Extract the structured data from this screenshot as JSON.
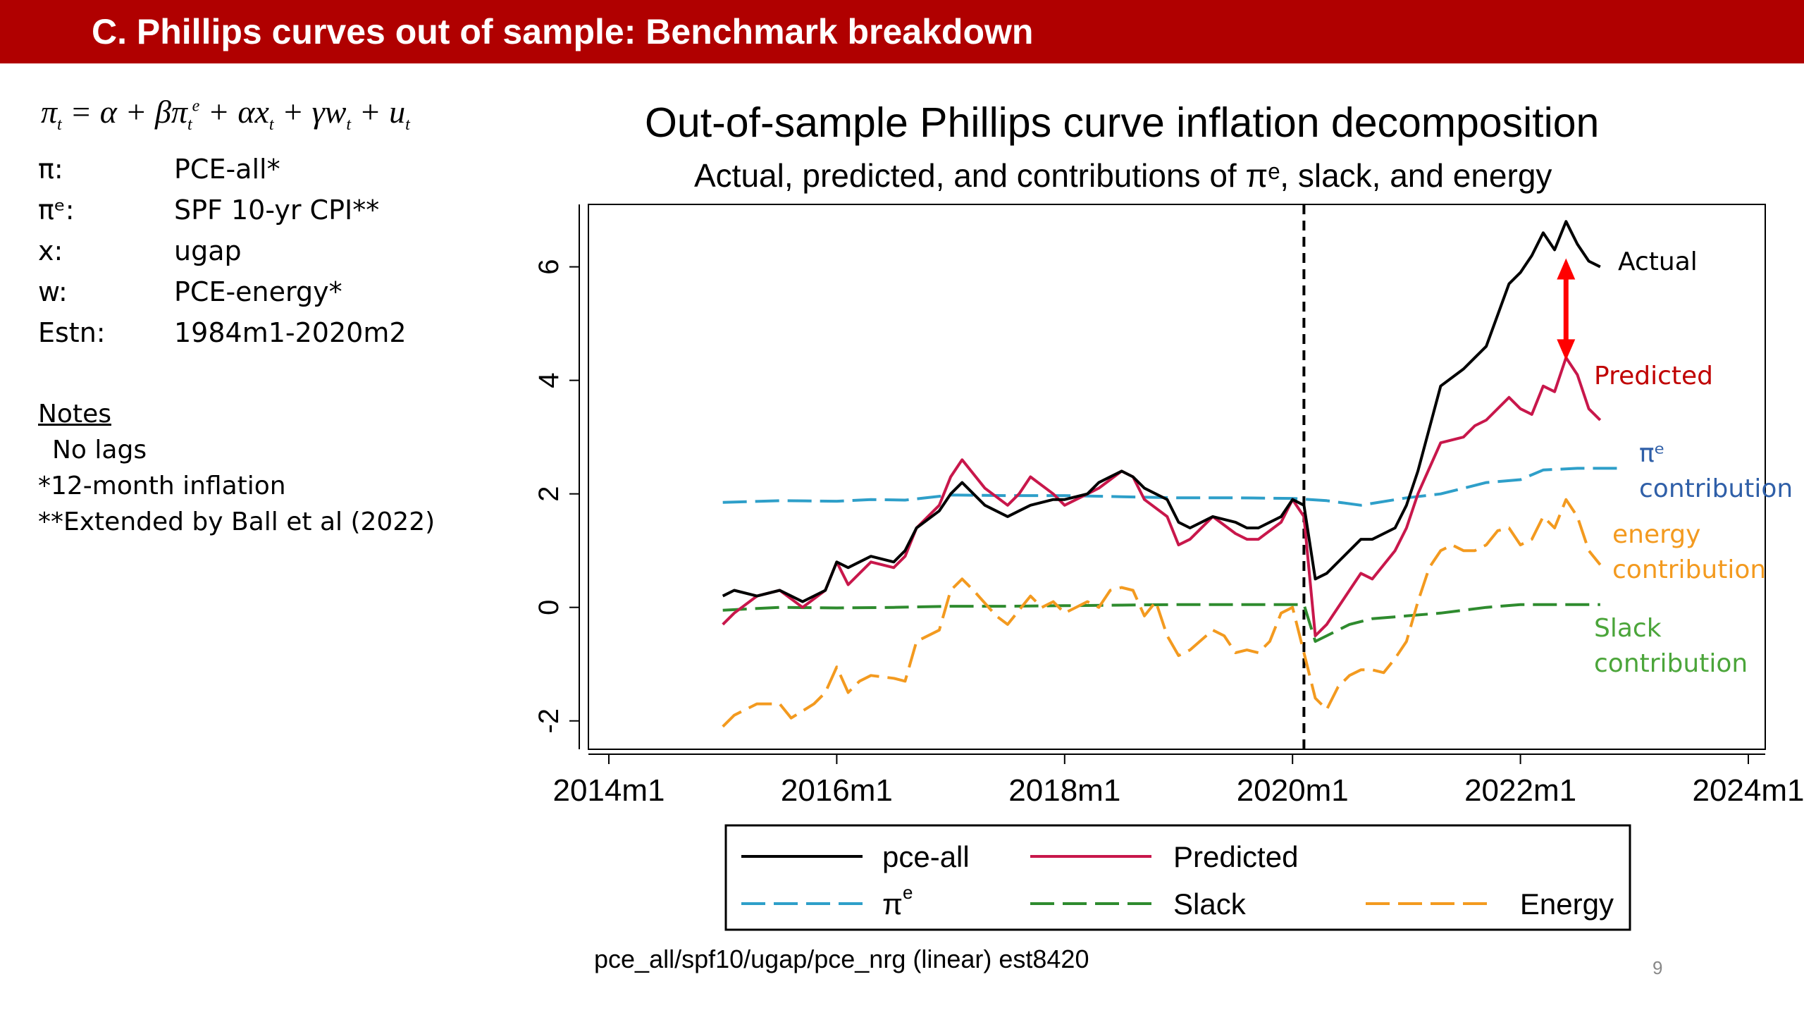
{
  "slide": {
    "title": "C. Phillips curves out of sample: Benchmark breakdown",
    "formula": "π_t = α + βπ_t^e + αx_t + γw_t + u_t",
    "definitions": [
      {
        "key": "π:",
        "value": "PCE-all*"
      },
      {
        "key": "πᵉ:",
        "value": "SPF 10-yr CPI**"
      },
      {
        "key": "x:",
        "value": "ugap"
      },
      {
        "key": "w:",
        "value": "PCE-energy*"
      },
      {
        "key": "Estn:",
        "value": "1984m1-2020m2"
      }
    ],
    "notes": {
      "title": "Notes",
      "lines": [
        "No lags",
        "*12-month inflation",
        "**Extended by Ball et al (2022)"
      ]
    },
    "footer": "pce_all/spf10/ugap/pce_nrg (linear) est8420",
    "page_number": "9",
    "banner_color": "#b00000"
  },
  "chart_data": {
    "type": "line",
    "title": "Out-of-sample Phillips curve inflation decomposition",
    "subtitle": "Actual, predicted, and contributions of πᵉ, slack, and energy",
    "xlabel": "",
    "ylabel": "",
    "x_ticks": [
      "2014m1",
      "2016m1",
      "2018m1",
      "2020m1",
      "2022m1",
      "2024m1"
    ],
    "x_range": [
      2014.0,
      2024.0
    ],
    "y_ticks": [
      "-2",
      "0",
      "2",
      "4",
      "6"
    ],
    "y_range": [
      -2.5,
      7.1
    ],
    "vline_x": 2020.1,
    "grid": false,
    "legend_position": "bottom",
    "series": [
      {
        "name": "pce-all",
        "color": "#000000",
        "dash": "solid",
        "points": [
          [
            2015.0,
            0.2
          ],
          [
            2015.1,
            0.3
          ],
          [
            2015.3,
            0.2
          ],
          [
            2015.5,
            0.3
          ],
          [
            2015.7,
            0.1
          ],
          [
            2015.9,
            0.3
          ],
          [
            2016.0,
            0.8
          ],
          [
            2016.1,
            0.7
          ],
          [
            2016.3,
            0.9
          ],
          [
            2016.5,
            0.8
          ],
          [
            2016.6,
            1.0
          ],
          [
            2016.7,
            1.4
          ],
          [
            2016.9,
            1.7
          ],
          [
            2017.0,
            2.0
          ],
          [
            2017.1,
            2.2
          ],
          [
            2017.3,
            1.8
          ],
          [
            2017.5,
            1.6
          ],
          [
            2017.6,
            1.7
          ],
          [
            2017.7,
            1.8
          ],
          [
            2017.9,
            1.9
          ],
          [
            2018.0,
            1.9
          ],
          [
            2018.2,
            2.0
          ],
          [
            2018.3,
            2.2
          ],
          [
            2018.5,
            2.4
          ],
          [
            2018.6,
            2.3
          ],
          [
            2018.7,
            2.1
          ],
          [
            2018.9,
            1.9
          ],
          [
            2019.0,
            1.5
          ],
          [
            2019.1,
            1.4
          ],
          [
            2019.3,
            1.6
          ],
          [
            2019.5,
            1.5
          ],
          [
            2019.6,
            1.4
          ],
          [
            2019.7,
            1.4
          ],
          [
            2019.9,
            1.6
          ],
          [
            2020.0,
            1.9
          ],
          [
            2020.1,
            1.8
          ],
          [
            2020.2,
            0.5
          ],
          [
            2020.3,
            0.6
          ],
          [
            2020.5,
            1.0
          ],
          [
            2020.6,
            1.2
          ],
          [
            2020.7,
            1.2
          ],
          [
            2020.9,
            1.4
          ],
          [
            2021.0,
            1.8
          ],
          [
            2021.1,
            2.4
          ],
          [
            2021.3,
            3.9
          ],
          [
            2021.5,
            4.2
          ],
          [
            2021.6,
            4.4
          ],
          [
            2021.7,
            4.6
          ],
          [
            2021.9,
            5.7
          ],
          [
            2022.0,
            5.9
          ],
          [
            2022.1,
            6.2
          ],
          [
            2022.2,
            6.6
          ],
          [
            2022.3,
            6.3
          ],
          [
            2022.4,
            6.8
          ],
          [
            2022.5,
            6.4
          ],
          [
            2022.6,
            6.1
          ],
          [
            2022.7,
            6.0
          ]
        ]
      },
      {
        "name": "Predicted",
        "color": "#c8174b",
        "dash": "solid",
        "points": [
          [
            2015.0,
            -0.3
          ],
          [
            2015.1,
            -0.1
          ],
          [
            2015.3,
            0.2
          ],
          [
            2015.5,
            0.3
          ],
          [
            2015.7,
            0.0
          ],
          [
            2015.9,
            0.3
          ],
          [
            2016.0,
            0.8
          ],
          [
            2016.1,
            0.4
          ],
          [
            2016.3,
            0.8
          ],
          [
            2016.5,
            0.7
          ],
          [
            2016.6,
            0.9
          ],
          [
            2016.7,
            1.4
          ],
          [
            2016.9,
            1.8
          ],
          [
            2017.0,
            2.3
          ],
          [
            2017.1,
            2.6
          ],
          [
            2017.3,
            2.1
          ],
          [
            2017.5,
            1.8
          ],
          [
            2017.6,
            2.0
          ],
          [
            2017.7,
            2.3
          ],
          [
            2017.9,
            2.0
          ],
          [
            2018.0,
            1.8
          ],
          [
            2018.2,
            2.0
          ],
          [
            2018.3,
            2.1
          ],
          [
            2018.5,
            2.4
          ],
          [
            2018.6,
            2.3
          ],
          [
            2018.7,
            1.9
          ],
          [
            2018.9,
            1.6
          ],
          [
            2019.0,
            1.1
          ],
          [
            2019.1,
            1.2
          ],
          [
            2019.3,
            1.6
          ],
          [
            2019.5,
            1.3
          ],
          [
            2019.6,
            1.2
          ],
          [
            2019.7,
            1.2
          ],
          [
            2019.9,
            1.5
          ],
          [
            2020.0,
            1.9
          ],
          [
            2020.1,
            1.6
          ],
          [
            2020.2,
            -0.5
          ],
          [
            2020.3,
            -0.3
          ],
          [
            2020.5,
            0.3
          ],
          [
            2020.6,
            0.6
          ],
          [
            2020.7,
            0.5
          ],
          [
            2020.9,
            1.0
          ],
          [
            2021.0,
            1.4
          ],
          [
            2021.1,
            2.0
          ],
          [
            2021.3,
            2.9
          ],
          [
            2021.5,
            3.0
          ],
          [
            2021.6,
            3.2
          ],
          [
            2021.7,
            3.3
          ],
          [
            2021.9,
            3.7
          ],
          [
            2022.0,
            3.5
          ],
          [
            2022.1,
            3.4
          ],
          [
            2022.2,
            3.9
          ],
          [
            2022.3,
            3.8
          ],
          [
            2022.4,
            4.4
          ],
          [
            2022.5,
            4.1
          ],
          [
            2022.6,
            3.5
          ],
          [
            2022.7,
            3.3
          ]
        ]
      },
      {
        "name": "πᵉ",
        "color": "#2e9fc9",
        "dash": "dashed",
        "points": [
          [
            2015.0,
            1.85
          ],
          [
            2015.5,
            1.88
          ],
          [
            2016.0,
            1.87
          ],
          [
            2016.3,
            1.9
          ],
          [
            2016.6,
            1.89
          ],
          [
            2017.0,
            1.98
          ],
          [
            2017.5,
            1.97
          ],
          [
            2018.0,
            1.97
          ],
          [
            2018.5,
            1.95
          ],
          [
            2019.0,
            1.93
          ],
          [
            2019.5,
            1.93
          ],
          [
            2020.0,
            1.92
          ],
          [
            2020.3,
            1.88
          ],
          [
            2020.6,
            1.8
          ],
          [
            2021.0,
            1.93
          ],
          [
            2021.3,
            2.0
          ],
          [
            2021.7,
            2.2
          ],
          [
            2022.0,
            2.25
          ],
          [
            2022.2,
            2.42
          ],
          [
            2022.5,
            2.45
          ],
          [
            2022.9,
            2.45
          ]
        ]
      },
      {
        "name": "Slack",
        "color": "#2e8b2e",
        "dash": "dashed",
        "points": [
          [
            2015.0,
            -0.05
          ],
          [
            2015.5,
            0.0
          ],
          [
            2016.0,
            -0.01
          ],
          [
            2016.5,
            0.0
          ],
          [
            2017.0,
            0.02
          ],
          [
            2017.5,
            0.02
          ],
          [
            2018.0,
            0.03
          ],
          [
            2018.5,
            0.04
          ],
          [
            2019.0,
            0.05
          ],
          [
            2019.5,
            0.05
          ],
          [
            2020.0,
            0.05
          ],
          [
            2020.1,
            0.05
          ],
          [
            2020.2,
            -0.6
          ],
          [
            2020.3,
            -0.5
          ],
          [
            2020.5,
            -0.3
          ],
          [
            2020.7,
            -0.2
          ],
          [
            2021.0,
            -0.15
          ],
          [
            2021.3,
            -0.1
          ],
          [
            2021.7,
            0.0
          ],
          [
            2022.0,
            0.05
          ],
          [
            2022.3,
            0.05
          ],
          [
            2022.7,
            0.05
          ]
        ]
      },
      {
        "name": "Energy",
        "color": "#f39a1f",
        "dash": "dashed",
        "points": [
          [
            2015.0,
            -2.1
          ],
          [
            2015.1,
            -1.9
          ],
          [
            2015.3,
            -1.7
          ],
          [
            2015.5,
            -1.7
          ],
          [
            2015.6,
            -1.95
          ],
          [
            2015.8,
            -1.7
          ],
          [
            2015.9,
            -1.5
          ],
          [
            2016.0,
            -1.05
          ],
          [
            2016.1,
            -1.5
          ],
          [
            2016.2,
            -1.3
          ],
          [
            2016.3,
            -1.2
          ],
          [
            2016.5,
            -1.25
          ],
          [
            2016.6,
            -1.3
          ],
          [
            2016.7,
            -0.6
          ],
          [
            2016.9,
            -0.4
          ],
          [
            2017.0,
            0.3
          ],
          [
            2017.1,
            0.5
          ],
          [
            2017.2,
            0.3
          ],
          [
            2017.4,
            -0.15
          ],
          [
            2017.5,
            -0.3
          ],
          [
            2017.7,
            0.2
          ],
          [
            2017.8,
            0.0
          ],
          [
            2017.9,
            0.1
          ],
          [
            2018.0,
            -0.1
          ],
          [
            2018.2,
            0.1
          ],
          [
            2018.3,
            0.0
          ],
          [
            2018.4,
            0.3
          ],
          [
            2018.5,
            0.35
          ],
          [
            2018.6,
            0.3
          ],
          [
            2018.7,
            -0.15
          ],
          [
            2018.8,
            0.1
          ],
          [
            2018.9,
            -0.5
          ],
          [
            2019.0,
            -0.85
          ],
          [
            2019.1,
            -0.75
          ],
          [
            2019.3,
            -0.4
          ],
          [
            2019.4,
            -0.5
          ],
          [
            2019.5,
            -0.8
          ],
          [
            2019.6,
            -0.75
          ],
          [
            2019.7,
            -0.8
          ],
          [
            2019.8,
            -0.6
          ],
          [
            2019.9,
            -0.1
          ],
          [
            2020.0,
            0.0
          ],
          [
            2020.1,
            -0.8
          ],
          [
            2020.2,
            -1.6
          ],
          [
            2020.3,
            -1.8
          ],
          [
            2020.4,
            -1.4
          ],
          [
            2020.5,
            -1.2
          ],
          [
            2020.6,
            -1.1
          ],
          [
            2020.7,
            -1.1
          ],
          [
            2020.8,
            -1.15
          ],
          [
            2020.9,
            -0.9
          ],
          [
            2021.0,
            -0.6
          ],
          [
            2021.1,
            0.1
          ],
          [
            2021.2,
            0.7
          ],
          [
            2021.3,
            1.0
          ],
          [
            2021.4,
            1.1
          ],
          [
            2021.5,
            1.0
          ],
          [
            2021.6,
            1.0
          ],
          [
            2021.7,
            1.1
          ],
          [
            2021.8,
            1.35
          ],
          [
            2021.9,
            1.4
          ],
          [
            2022.0,
            1.1
          ],
          [
            2022.1,
            1.2
          ],
          [
            2022.2,
            1.6
          ],
          [
            2022.3,
            1.4
          ],
          [
            2022.4,
            1.9
          ],
          [
            2022.5,
            1.6
          ],
          [
            2022.6,
            1.0
          ],
          [
            2022.7,
            0.75
          ]
        ]
      }
    ],
    "legend": [
      {
        "label": "pce-all",
        "color": "#000000",
        "dash": "solid"
      },
      {
        "label": "Predicted",
        "color": "#c8174b",
        "dash": "solid"
      },
      {
        "label": "π",
        "sup": "e",
        "color": "#2e9fc9",
        "dash": "dashed"
      },
      {
        "label": "Slack",
        "color": "#2e8b2e",
        "dash": "dashed"
      },
      {
        "label": "Energy",
        "color": "#f39a1f",
        "dash": "dashed"
      }
    ],
    "annotations": [
      {
        "lines": [
          "Actual"
        ],
        "color": "#000000"
      },
      {
        "lines": [
          "Predicted"
        ],
        "color": "#c00000"
      },
      {
        "lines": [
          "πᵉ",
          "contribution"
        ],
        "color": "#2f5fa8"
      },
      {
        "lines": [
          "energy",
          "contribution"
        ],
        "color": "#f39a1f"
      },
      {
        "lines": [
          "Slack",
          "contribution"
        ],
        "color": "#4ba53a"
      }
    ],
    "gap_arrow": {
      "x": 2022.4,
      "y_from": 6.1,
      "y_to": 4.4,
      "color": "#ff0000"
    }
  }
}
